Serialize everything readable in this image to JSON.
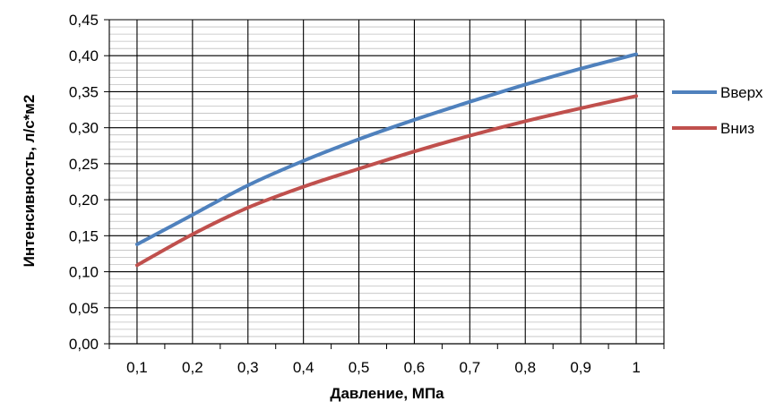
{
  "chart_data": {
    "type": "line",
    "title": "",
    "xlabel": "Давление, МПа",
    "ylabel": "Интенсивность, л/с*м2",
    "x": [
      0.1,
      0.2,
      0.3,
      0.4,
      0.5,
      0.6,
      0.7,
      0.8,
      0.9,
      1.0
    ],
    "x_tick_labels": [
      "0,1",
      "0,2",
      "0,3",
      "0,4",
      "0,5",
      "0,6",
      "0,7",
      "0,8",
      "0,9",
      "1"
    ],
    "xlim": [
      0.05,
      1.05
    ],
    "ylim": [
      0,
      0.45
    ],
    "y_ticks": [
      0,
      0.05,
      0.1,
      0.15,
      0.2,
      0.25,
      0.3,
      0.35,
      0.4,
      0.45
    ],
    "y_tick_labels": [
      "0,00",
      "0,05",
      "0,10",
      "0,15",
      "0,20",
      "0,25",
      "0,30",
      "0,35",
      "0,40",
      "0,45"
    ],
    "grid": true,
    "legend_position": "right",
    "series": [
      {
        "name": "Вверх",
        "color": "#4f81bd",
        "values": [
          0.138,
          0.179,
          0.22,
          0.254,
          0.284,
          0.311,
          0.336,
          0.36,
          0.382,
          0.402
        ]
      },
      {
        "name": "Вниз",
        "color": "#c0504d",
        "values": [
          0.109,
          0.152,
          0.189,
          0.218,
          0.243,
          0.267,
          0.289,
          0.309,
          0.327,
          0.344
        ]
      }
    ]
  }
}
